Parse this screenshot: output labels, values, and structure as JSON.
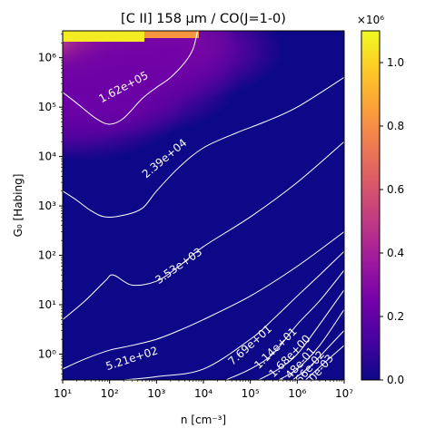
{
  "chart_data": {
    "type": "heatmap",
    "title": "[C II] 158 μm / CO(J=1-0)",
    "xlabel": "n [cm⁻³]",
    "ylabel": "G₀ [Habing]",
    "x_scale": "log",
    "y_scale": "log",
    "xlim": [
      10,
      10000000
    ],
    "ylim": [
      0.3,
      3500000
    ],
    "x_ticks": [
      {
        "value": 10,
        "label": "10¹"
      },
      {
        "value": 100,
        "label": "10²"
      },
      {
        "value": 1000,
        "label": "10³"
      },
      {
        "value": 10000,
        "label": "10⁴"
      },
      {
        "value": 100000,
        "label": "10⁵"
      },
      {
        "value": 1000000,
        "label": "10⁶"
      },
      {
        "value": 10000000,
        "label": "10⁷"
      }
    ],
    "y_ticks": [
      {
        "value": 1,
        "label": "10⁰"
      },
      {
        "value": 10,
        "label": "10¹"
      },
      {
        "value": 100,
        "label": "10²"
      },
      {
        "value": 1000,
        "label": "10³"
      },
      {
        "value": 10000,
        "label": "10⁴"
      },
      {
        "value": 100000,
        "label": "10⁵"
      },
      {
        "value": 1000000,
        "label": "10⁶"
      }
    ],
    "colormap": "plasma",
    "colorbar": {
      "range": [
        0,
        1100000
      ],
      "multiplier_label": "×10⁶",
      "ticks": [
        {
          "value": 0,
          "label": "0.0"
        },
        {
          "value": 200000,
          "label": "0.2"
        },
        {
          "value": 400000,
          "label": "0.4"
        },
        {
          "value": 600000,
          "label": "0.6"
        },
        {
          "value": 800000,
          "label": "0.8"
        },
        {
          "value": 1000000,
          "label": "1.0"
        }
      ],
      "stops": [
        "#0d0887",
        "#46039f",
        "#7201a8",
        "#9c179e",
        "#bd3786",
        "#d8576b",
        "#ed7953",
        "#fb9f3a",
        "#fdca26",
        "#f0f921"
      ]
    },
    "hot_region": [
      {
        "x": 10,
        "y": 3500000,
        "value": 1100000
      },
      {
        "x": 60,
        "y": 2500000,
        "value": 900000
      },
      {
        "x": 400,
        "y": 2000000,
        "value": 500000
      },
      {
        "x": 30,
        "y": 1000000,
        "value": 450000
      },
      {
        "x": 2000,
        "y": 1500000,
        "value": 250000
      },
      {
        "x": 15,
        "y": 100000,
        "value": 220000
      },
      {
        "x": 200,
        "y": 300000,
        "value": 230000
      }
    ],
    "contours": [
      {
        "level": "1.62e+05",
        "points": [
          [
            10,
            200000
          ],
          [
            20,
            120000
          ],
          [
            50,
            60000
          ],
          [
            100,
            45000
          ],
          [
            200,
            60000
          ],
          [
            500,
            150000
          ],
          [
            1000,
            250000
          ],
          [
            2000,
            400000
          ],
          [
            4000,
            800000
          ],
          [
            6000,
            1500000
          ],
          [
            7500,
            3500000
          ]
        ],
        "label_at": {
          "x": 200,
          "y": 250000,
          "angle": -28
        }
      },
      {
        "level": "2.39e+04",
        "points": [
          [
            10,
            2000
          ],
          [
            20,
            1300
          ],
          [
            40,
            800
          ],
          [
            80,
            600
          ],
          [
            200,
            650
          ],
          [
            500,
            900
          ],
          [
            1000,
            2000
          ],
          [
            3000,
            6000
          ],
          [
            10000,
            15000
          ],
          [
            50000,
            30000
          ],
          [
            200000,
            50000
          ],
          [
            1000000,
            100000
          ],
          [
            10000000,
            400000
          ]
        ],
        "label_at": {
          "x": 1500,
          "y": 9000,
          "angle": -40
        }
      },
      {
        "level": "3.53e+03",
        "points": [
          [
            10,
            5
          ],
          [
            30,
            12
          ],
          [
            80,
            30
          ],
          [
            120,
            40
          ],
          [
            300,
            25
          ],
          [
            1000,
            30
          ],
          [
            3000,
            60
          ],
          [
            10000,
            150
          ],
          [
            100000,
            600
          ],
          [
            1000000,
            3000
          ],
          [
            10000000,
            20000
          ]
        ],
        "label_at": {
          "x": 3000,
          "y": 60,
          "angle": -35
        }
      },
      {
        "level": "5.21e+02",
        "points": [
          [
            10,
            0.5
          ],
          [
            30,
            0.8
          ],
          [
            100,
            1.2
          ],
          [
            300,
            1.5
          ],
          [
            1000,
            2
          ],
          [
            3000,
            3
          ],
          [
            10000,
            5
          ],
          [
            100000,
            15
          ],
          [
            1000000,
            60
          ],
          [
            10000000,
            300
          ]
        ],
        "label_at": {
          "x": 300,
          "y": 0.8,
          "angle": -18
        }
      },
      {
        "level": "7.69e+01",
        "points": [
          [
            200,
            0.3
          ],
          [
            1000,
            0.35
          ],
          [
            10000,
            0.5
          ],
          [
            100000,
            2
          ],
          [
            300000,
            5
          ],
          [
            1000000,
            15
          ],
          [
            3000000,
            40
          ],
          [
            10000000,
            120
          ]
        ],
        "label_at": {
          "x": 100000,
          "y": 1.5,
          "angle": -42
        }
      },
      {
        "level": "1.14e+01",
        "points": [
          [
            30000,
            0.3
          ],
          [
            100000,
            0.5
          ],
          [
            300000,
            1
          ],
          [
            1000000,
            4
          ],
          [
            3000000,
            12
          ],
          [
            10000000,
            50
          ]
        ],
        "label_at": {
          "x": 350000,
          "y": 1.3,
          "angle": -44
        }
      },
      {
        "level": "1.68e+00",
        "points": [
          [
            150000,
            0.3
          ],
          [
            400000,
            0.5
          ],
          [
            1000000,
            1
          ],
          [
            3000000,
            4
          ],
          [
            10000000,
            20
          ]
        ],
        "label_at": {
          "x": 700000,
          "y": 0.9,
          "angle": -46
        }
      },
      {
        "level": "2.48e-01",
        "points": [
          [
            400000,
            0.3
          ],
          [
            1000000,
            0.5
          ],
          [
            3000000,
            1.5
          ],
          [
            10000000,
            8
          ]
        ],
        "label_at": {
          "x": 1000000,
          "y": 0.55,
          "angle": -48
        }
      },
      {
        "level": "3.66e-02",
        "points": [
          [
            800000,
            0.3
          ],
          [
            2000000,
            0.6
          ],
          [
            5000000,
            1.5
          ],
          [
            10000000,
            3
          ]
        ],
        "label_at": {
          "x": 1600000,
          "y": 0.45,
          "angle": -50
        }
      },
      {
        "level": "5.40e-03",
        "points": [
          [
            1500000,
            0.3
          ],
          [
            4000000,
            0.7
          ],
          [
            10000000,
            1.5
          ]
        ],
        "label_at": {
          "x": 2500000,
          "y": 0.38,
          "angle": -50
        }
      }
    ]
  }
}
